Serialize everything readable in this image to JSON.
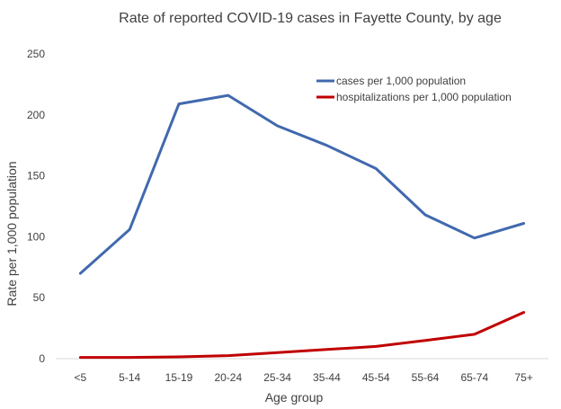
{
  "chart_data": {
    "type": "line",
    "title": "Rate of reported COVID-19 cases in Fayette County, by age",
    "xlabel": "Age group",
    "ylabel": "Rate per 1,000 population",
    "ylim": [
      0,
      250
    ],
    "yticks": [
      0,
      50,
      100,
      150,
      200,
      250
    ],
    "grid": false,
    "legend_position": "top-right",
    "categories": [
      "<5",
      "5-14",
      "15-19",
      "20-24",
      "25-34",
      "35-44",
      "45-54",
      "55-64",
      "65-74",
      "75+"
    ],
    "series": [
      {
        "name": "cases per 1,000 population",
        "color": "#4169ae",
        "values": [
          70,
          106,
          209,
          216,
          191,
          175,
          156,
          118,
          99,
          111
        ]
      },
      {
        "name": "hospitalizations per 1,000 population",
        "color": "#c00000",
        "values": [
          1,
          1,
          1.5,
          2.5,
          5,
          7.5,
          10,
          15,
          20,
          38
        ]
      }
    ]
  }
}
